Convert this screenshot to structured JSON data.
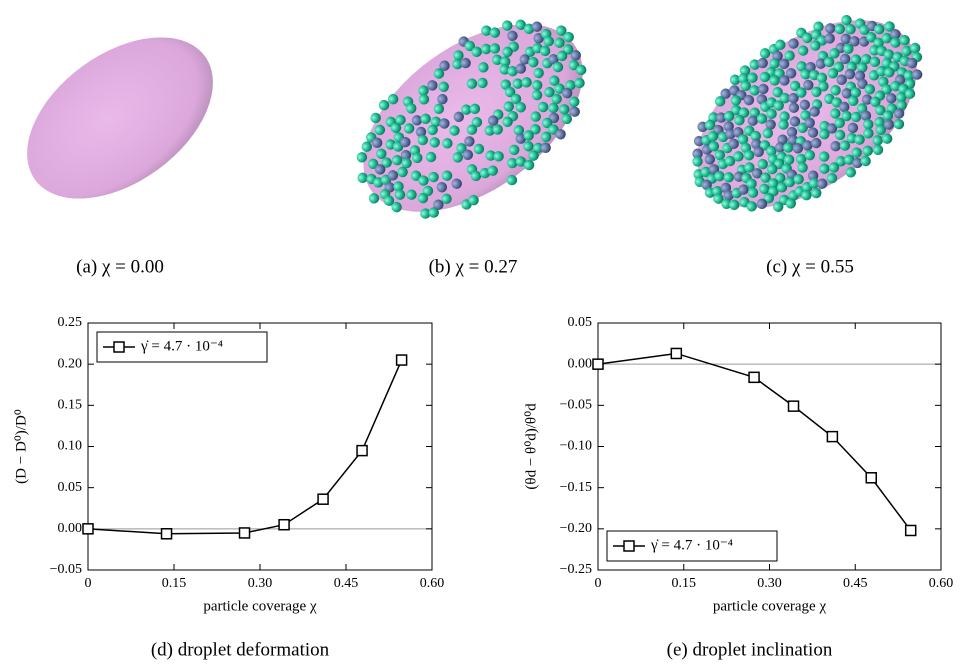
{
  "panels": [
    {
      "caption": "(a) χ = 0.00"
    },
    {
      "caption": "(b) χ = 0.27"
    },
    {
      "caption": "(c) χ = 0.55"
    }
  ],
  "chart_data": [
    {
      "type": "line",
      "caption": "(d) droplet deformation",
      "x_label": "particle coverage χ",
      "y_label": "(D − D⁰)/D⁰",
      "x": [
        0,
        0.137,
        0.273,
        0.342,
        0.41,
        0.478,
        0.547
      ],
      "series": [
        {
          "name": "γ̇ = 4.7 · 10⁻⁴",
          "color": "#000000",
          "values": [
            0.0,
            -0.006,
            -0.005,
            0.005,
            0.036,
            0.095,
            0.205
          ]
        }
      ],
      "xlim": [
        0,
        0.6
      ],
      "xticks": [
        0,
        0.15,
        {
          "value": 0.3,
          "label": "0.30"
        },
        0.45,
        {
          "value": 0.6,
          "label": "0.60"
        }
      ],
      "ylim": [
        -0.05,
        0.25
      ],
      "yticks": [
        {
          "value": -0.05,
          "label": "−0.05"
        },
        {
          "value": 0,
          "label": "0.00"
        },
        0.05,
        {
          "value": 0.1,
          "label": "0.10"
        },
        0.15,
        {
          "value": 0.2,
          "label": "0.20"
        },
        0.25
      ],
      "legend": "upper left",
      "grid": false
    },
    {
      "type": "line",
      "caption": "(e) droplet inclination",
      "x_label": "particle coverage χ",
      "y_label": "(θd − θ⁰d)/θ⁰d",
      "x": [
        0,
        0.137,
        0.273,
        0.342,
        0.41,
        0.478,
        0.547
      ],
      "series": [
        {
          "name": "γ̇ = 4.7 · 10⁻⁴",
          "color": "#000000",
          "values": [
            0.0,
            0.013,
            -0.016,
            -0.051,
            -0.088,
            -0.138,
            -0.202
          ]
        }
      ],
      "xlim": [
        0,
        0.6
      ],
      "xticks": [
        0,
        0.15,
        {
          "value": 0.3,
          "label": "0.30"
        },
        0.45,
        {
          "value": 0.6,
          "label": "0.60"
        }
      ],
      "ylim": [
        -0.25,
        0.05
      ],
      "yticks": [
        {
          "value": -0.25,
          "label": "−0.25"
        },
        {
          "value": -0.2,
          "label": "−0.20"
        },
        {
          "value": -0.15,
          "label": "−0.15"
        },
        {
          "value": -0.1,
          "label": "−0.10"
        },
        {
          "value": -0.05,
          "label": "−0.05"
        },
        {
          "value": 0,
          "label": "0.00"
        },
        0.05
      ],
      "legend": "lower left",
      "grid": false
    }
  ]
}
